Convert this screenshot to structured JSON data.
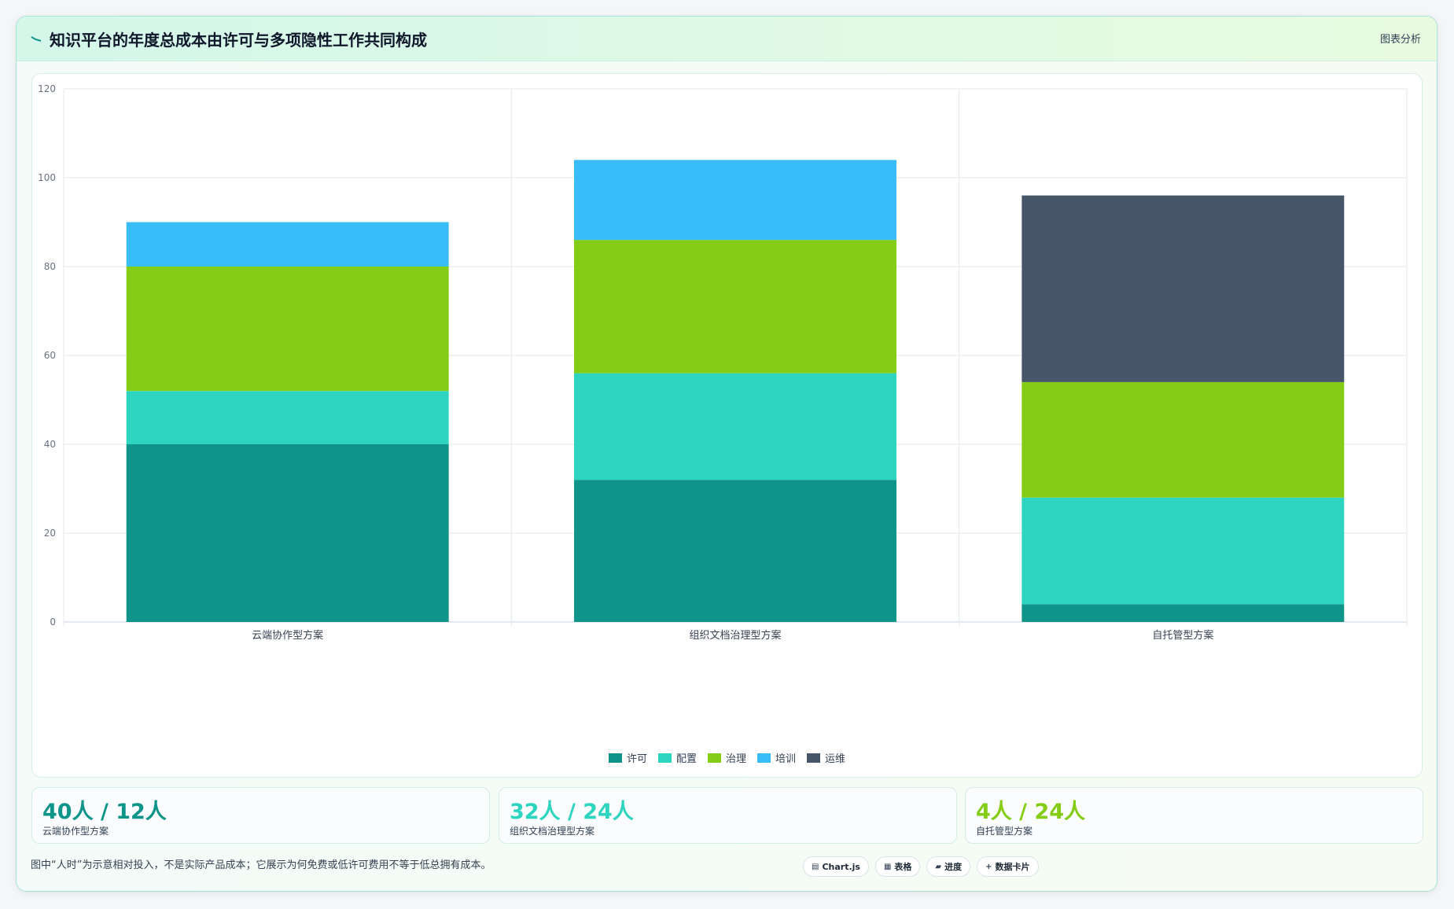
{
  "header": {
    "title": "知识平台的年度总成本由许可与多项隐性工作共同构成",
    "tag": "图表分析"
  },
  "chart_data": {
    "type": "bar",
    "stacked": true,
    "categories": [
      "云端协作型方案",
      "组织文档治理型方案",
      "自托管型方案"
    ],
    "series": [
      {
        "name": "许可",
        "color": "#0e9488",
        "values": [
          40,
          32,
          4
        ]
      },
      {
        "name": "配置",
        "color": "#2dd4bf",
        "values": [
          12,
          24,
          24
        ]
      },
      {
        "name": "治理",
        "color": "#84cc16",
        "values": [
          28,
          30,
          26
        ]
      },
      {
        "name": "培训",
        "color": "#38bdf8",
        "values": [
          10,
          18,
          0
        ]
      },
      {
        "name": "运维",
        "color": "#475569",
        "values": [
          0,
          0,
          42
        ]
      }
    ],
    "ylim": [
      0,
      120
    ],
    "yticks": [
      0,
      20,
      40,
      60,
      80,
      100,
      120
    ],
    "grid": true,
    "legend_position": "bottom"
  },
  "stats": [
    {
      "value": "40人 / 12人",
      "label": "云端协作型方案",
      "color": "#0e9488"
    },
    {
      "value": "32人 / 24人",
      "label": "组织文档治理型方案",
      "color": "#2dd4bf"
    },
    {
      "value": "4人 / 24人",
      "label": "自托管型方案",
      "color": "#84cc16"
    }
  ],
  "footnote": "图中“人时”为示意相对投入，不是实际产品成本；它展示为何免费或低许可费用不等于低总拥有成本。",
  "toolbar": {
    "pills": [
      {
        "icon": "chart-icon",
        "glyph": "▤",
        "label": "Chart.js"
      },
      {
        "icon": "table-icon",
        "glyph": "▦",
        "label": "表格"
      },
      {
        "icon": "progress-icon",
        "glyph": "▰",
        "label": "进度"
      },
      {
        "icon": "data-card-icon",
        "glyph": "+",
        "label": "数据卡片"
      }
    ]
  }
}
